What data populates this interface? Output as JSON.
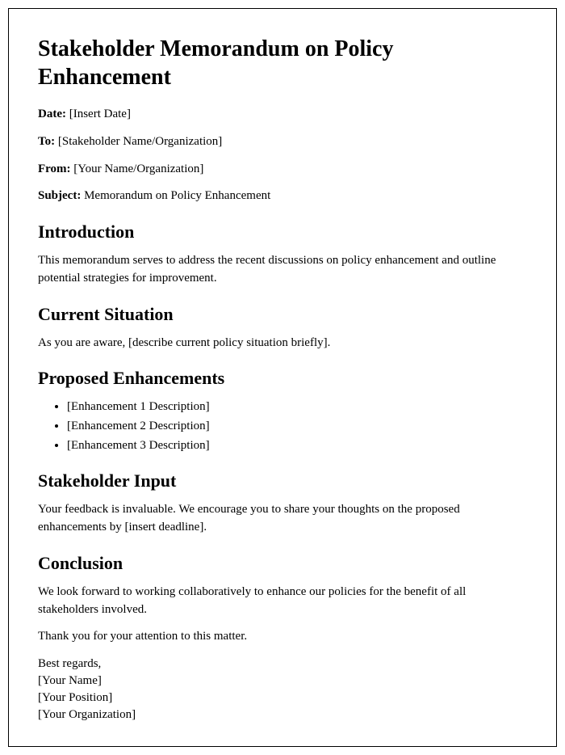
{
  "title": "Stakeholder Memorandum on Policy Enhancement",
  "meta": {
    "date_label": "Date:",
    "date_value": "[Insert Date]",
    "to_label": "To:",
    "to_value": "[Stakeholder Name/Organization]",
    "from_label": "From:",
    "from_value": "[Your Name/Organization]",
    "subject_label": "Subject:",
    "subject_value": "Memorandum on Policy Enhancement"
  },
  "sections": {
    "intro_h": "Introduction",
    "intro_p": "This memorandum serves to address the recent discussions on policy enhancement and outline potential strategies for improvement.",
    "current_h": "Current Situation",
    "current_p": "As you are aware, [describe current policy situation briefly].",
    "proposed_h": "Proposed Enhancements",
    "proposed_items": [
      "[Enhancement 1 Description]",
      "[Enhancement 2 Description]",
      "[Enhancement 3 Description]"
    ],
    "input_h": "Stakeholder Input",
    "input_p": "Your feedback is invaluable. We encourage you to share your thoughts on the proposed enhancements by [insert deadline].",
    "conclusion_h": "Conclusion",
    "conclusion_p": "We look forward to working collaboratively to enhance our policies for the benefit of all stakeholders involved.",
    "thanks_p": "Thank you for your attention to this matter."
  },
  "signature": {
    "regards": "Best regards,",
    "name": "[Your Name]",
    "position": "[Your Position]",
    "org": "[Your Organization]"
  }
}
